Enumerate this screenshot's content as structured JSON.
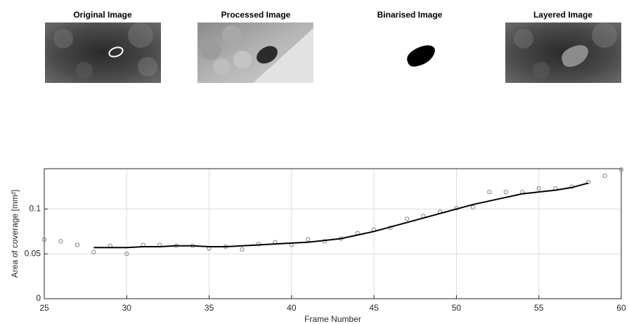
{
  "panels": [
    {
      "title": "Original Image"
    },
    {
      "title": "Processed Image"
    },
    {
      "title": "Binarised Image"
    },
    {
      "title": "Layered Image"
    }
  ],
  "chart_data": {
    "type": "scatter",
    "xlabel": "Frame Number",
    "ylabel": "Area of coverage [mm²]",
    "xlim": [
      25,
      60
    ],
    "xticks": [
      25,
      30,
      35,
      40,
      45,
      50,
      55,
      60
    ],
    "ylim": [
      0,
      0.145
    ],
    "yticks": [
      0,
      0.05,
      0.1
    ],
    "grid": true,
    "series": [
      {
        "type": "scatter",
        "color": "#7f7f7f",
        "x": [
          25,
          26,
          27,
          28,
          29,
          30,
          31,
          32,
          33,
          34,
          35,
          36,
          37,
          38,
          39,
          40,
          41,
          42,
          43,
          44,
          45,
          46,
          47,
          48,
          49,
          50,
          51,
          52,
          53,
          54,
          55,
          56,
          57,
          58,
          59,
          60
        ],
        "values": [
          0.066,
          0.064,
          0.06,
          0.052,
          0.059,
          0.05,
          0.06,
          0.06,
          0.059,
          0.059,
          0.056,
          0.058,
          0.055,
          0.061,
          0.063,
          0.06,
          0.066,
          0.064,
          0.067,
          0.073,
          0.077,
          0.079,
          0.089,
          0.092,
          0.097,
          0.101,
          0.102,
          0.119,
          0.119,
          0.119,
          0.123,
          0.123,
          0.125,
          0.13,
          0.137,
          0.144
        ]
      },
      {
        "type": "line",
        "color": "#000000",
        "x": [
          28,
          29,
          30,
          31,
          32,
          33,
          34,
          35,
          36,
          37,
          38,
          39,
          40,
          41,
          42,
          43,
          44,
          45,
          46,
          47,
          48,
          49,
          50,
          51,
          52,
          53,
          54,
          55,
          56,
          57,
          58
        ],
        "values": [
          0.057,
          0.057,
          0.057,
          0.058,
          0.058,
          0.059,
          0.059,
          0.058,
          0.058,
          0.059,
          0.06,
          0.061,
          0.062,
          0.063,
          0.065,
          0.067,
          0.071,
          0.075,
          0.08,
          0.085,
          0.09,
          0.095,
          0.1,
          0.105,
          0.109,
          0.113,
          0.117,
          0.119,
          0.121,
          0.124,
          0.129
        ]
      }
    ]
  }
}
